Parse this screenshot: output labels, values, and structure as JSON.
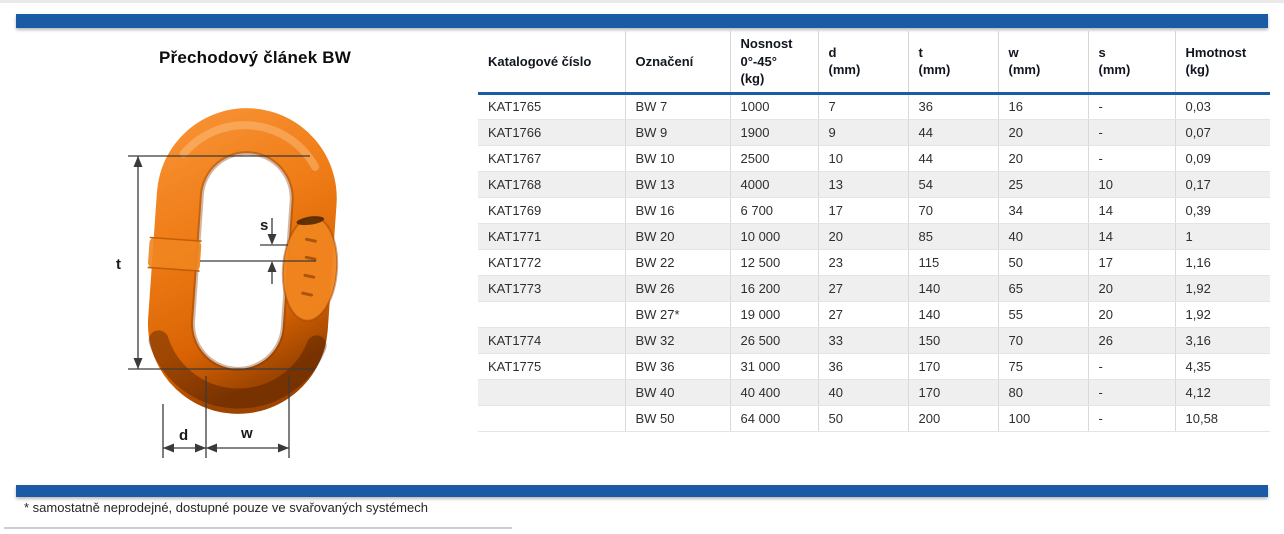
{
  "page": {
    "title": "Přechodový článek BW",
    "footnote": "* samostatně neprodejné, dostupné pouze ve svařovaných systémech"
  },
  "colors": {
    "accent_blue": "#1b5ba5",
    "link_orange": "#ef7c16",
    "row_alt_gray": "#efefef"
  },
  "diagram": {
    "description": "master-link-dimension-drawing",
    "labels": {
      "t": "t",
      "s": "s",
      "d": "d",
      "w": "w"
    }
  },
  "table": {
    "columns": [
      "Katalogové číslo",
      "Označení",
      "Nosnost\n0°-45°\n(kg)",
      "d\n(mm)",
      "t\n(mm)",
      "w\n(mm)",
      "s\n(mm)",
      "Hmotnost\n(kg)"
    ],
    "rows": [
      [
        "KAT1765",
        "BW 7",
        "1000",
        "7",
        "36",
        "16",
        "-",
        "0,03"
      ],
      [
        "KAT1766",
        "BW 9",
        "1900",
        "9",
        "44",
        "20",
        "-",
        "0,07"
      ],
      [
        "KAT1767",
        "BW 10",
        "2500",
        "10",
        "44",
        "20",
        "-",
        "0,09"
      ],
      [
        "KAT1768",
        "BW 13",
        "4000",
        "13",
        "54",
        "25",
        "10",
        "0,17"
      ],
      [
        "KAT1769",
        "BW 16",
        "6 700",
        "17",
        "70",
        "34",
        "14",
        "0,39"
      ],
      [
        "KAT1771",
        "BW 20",
        "10 000",
        "20",
        "85",
        "40",
        "14",
        "1"
      ],
      [
        "KAT1772",
        "BW 22",
        "12 500",
        "23",
        "115",
        "50",
        "17",
        "1,16"
      ],
      [
        "KAT1773",
        "BW 26",
        "16 200",
        "27",
        "140",
        "65",
        "20",
        "1,92"
      ],
      [
        "",
        "BW 27*",
        "19 000",
        "27",
        "140",
        "55",
        "20",
        "1,92"
      ],
      [
        "KAT1774",
        "BW 32",
        "26 500",
        "33",
        "150",
        "70",
        "26",
        "3,16"
      ],
      [
        "KAT1775",
        "BW 36",
        "31 000",
        "36",
        "170",
        "75",
        "-",
        "4,35"
      ],
      [
        "",
        "BW 40",
        "40 400",
        "40",
        "170",
        "80",
        "-",
        "4,12"
      ],
      [
        "",
        "BW 50",
        "64 000",
        "50",
        "200",
        "100",
        "-",
        "10,58"
      ]
    ]
  }
}
